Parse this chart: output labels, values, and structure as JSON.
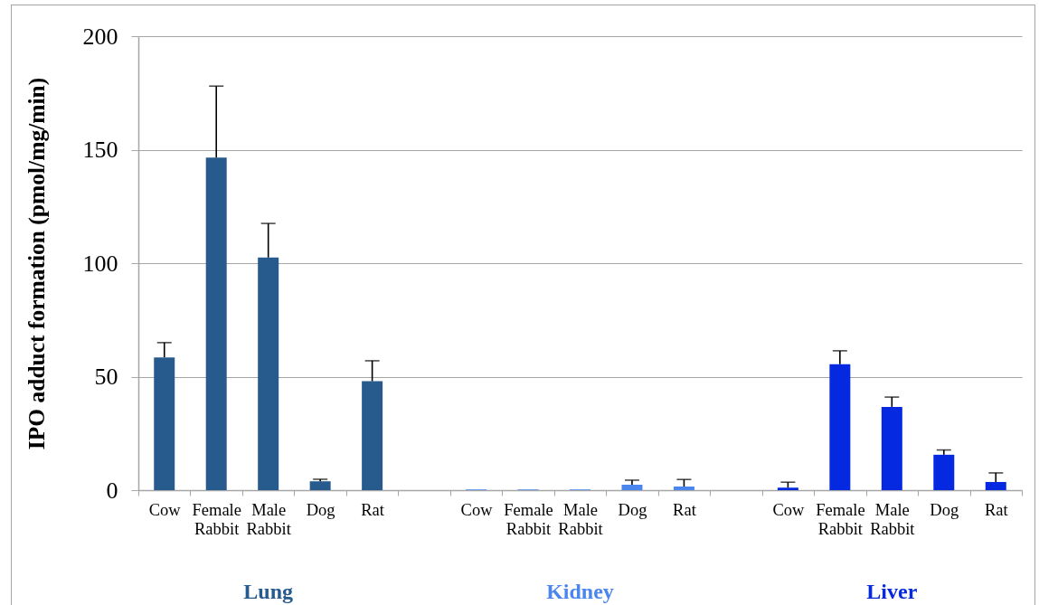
{
  "chart_data": {
    "type": "bar",
    "ylabel": "IPO adduct formation (pmol/mg/min)",
    "categories": [
      "Cow",
      "Female Rabbit",
      "Male Rabbit",
      "Dog",
      "Rat",
      null,
      "Cow",
      "Female Rabbit",
      "Male Rabbit",
      "Dog",
      "Rat",
      null,
      "Cow",
      "Female Rabbit",
      "Male Rabbit",
      "Dog",
      "Rat"
    ],
    "series": [
      {
        "name": "Lung",
        "color": "#275b8e",
        "values": [
          58.5,
          146.5,
          102.5,
          3.9,
          48,
          null,
          null,
          null,
          null,
          null,
          null,
          null,
          null,
          null,
          null,
          null,
          null
        ],
        "errors": [
          [
            58.5,
            65
          ],
          [
            146.5,
            178
          ],
          [
            102.5,
            117.5
          ],
          [
            3.9,
            4.8
          ],
          [
            48,
            57
          ],
          null,
          null,
          null,
          null,
          null,
          null,
          null,
          null,
          null,
          null,
          null,
          null
        ]
      },
      {
        "name": "Kidney",
        "color": "#4a86ee",
        "values": [
          null,
          null,
          null,
          null,
          null,
          null,
          0.3,
          0.3,
          0.3,
          2.4,
          1.6,
          null,
          null,
          null,
          null,
          null,
          null
        ],
        "errors": [
          null,
          null,
          null,
          null,
          null,
          null,
          null,
          null,
          null,
          [
            2.4,
            4.4
          ],
          [
            1.6,
            4.7
          ],
          null,
          null,
          null,
          null,
          null,
          null
        ]
      },
      {
        "name": "Liver",
        "color": "#0529e0",
        "values": [
          null,
          null,
          null,
          null,
          null,
          null,
          null,
          null,
          null,
          null,
          null,
          null,
          1.1,
          55.5,
          36.7,
          15.6,
          3.6
        ],
        "errors": [
          null,
          null,
          null,
          null,
          null,
          null,
          null,
          null,
          null,
          null,
          null,
          null,
          [
            1.1,
            3.5
          ],
          [
            55.5,
            61.4
          ],
          [
            36.7,
            41
          ],
          [
            15.6,
            17.7
          ],
          [
            3.6,
            7.6
          ]
        ]
      }
    ],
    "ylim": [
      0,
      200
    ],
    "yticks": [
      0,
      50,
      100,
      150,
      200
    ],
    "grid": "y"
  }
}
